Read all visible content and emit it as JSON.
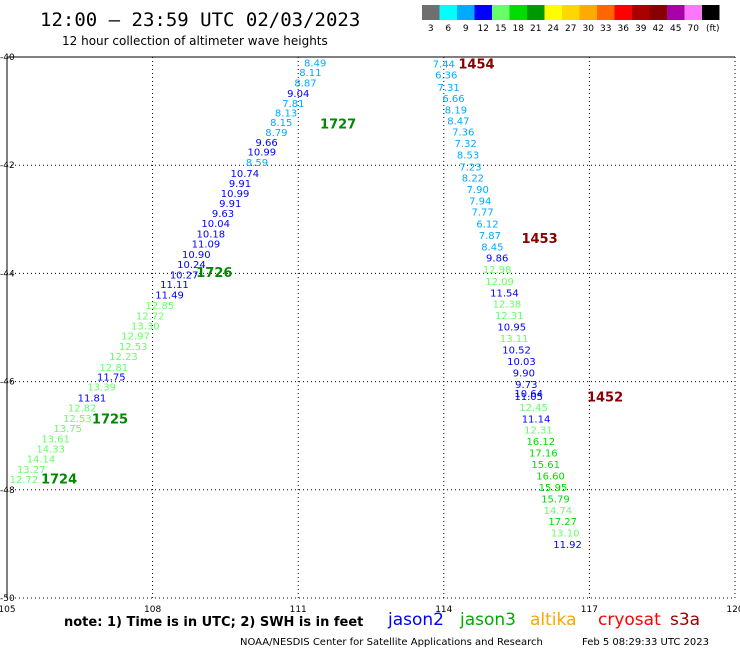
{
  "header": {
    "title": "12:00 – 23:59 UTC 02/03/2023",
    "subtitle": "12 hour collection of altimeter wave heights"
  },
  "color_scale": {
    "labels": [
      "3",
      "6",
      "9",
      "12",
      "15",
      "18",
      "21",
      "24",
      "27",
      "30",
      "33",
      "36",
      "39",
      "42",
      "45",
      "70",
      "(ft)"
    ],
    "colors": [
      "#6f6f6f",
      "#00ffff",
      "#00aaff",
      "#0000ff",
      "#66ff66",
      "#00dd00",
      "#009900",
      "#ffff00",
      "#ffd700",
      "#ffaa00",
      "#ff6600",
      "#ff0000",
      "#aa0000",
      "#880000",
      "#aa00aa",
      "#ff77ff",
      "#000000"
    ]
  },
  "note": "note:  1) Time is in UTC;  2) SWH is in feet",
  "missions": [
    {
      "label": "jason2",
      "color": "#0000ff"
    },
    {
      "label": "jason3",
      "color": "#00aa00"
    },
    {
      "label": "altika",
      "color": "#ffa500"
    },
    {
      "label": "cryosat",
      "color": "#ff0000"
    },
    {
      "label": "s3a",
      "color": "#990000"
    }
  ],
  "footer": {
    "credit": "NOAA/NESDIS Center for Satellite Applications and Research",
    "timestamp": "Feb  5 08:29:33 UTC 2023"
  },
  "chart_data": {
    "type": "scatter",
    "x_ticks": [
      "105",
      "108",
      "111",
      "114",
      "117",
      "120"
    ],
    "y_ticks": [
      "-40",
      "-42",
      "-44",
      "-46",
      "-48",
      "-50"
    ],
    "xlim": [
      105,
      120
    ],
    "ylim": [
      -50,
      -40
    ],
    "grid": true,
    "points": [
      {
        "x": 111.35,
        "y": -40.1,
        "label": "8.49",
        "color": "#00aaff"
      },
      {
        "x": 111.25,
        "y": -40.28,
        "label": "8.11",
        "color": "#00aaff"
      },
      {
        "x": 111.15,
        "y": -40.47,
        "label": "8.87",
        "color": "#00aaff"
      },
      {
        "x": 111.0,
        "y": -40.67,
        "label": "9.04",
        "color": "#0000ff"
      },
      {
        "x": 110.9,
        "y": -40.85,
        "label": "7.81",
        "color": "#00aaff"
      },
      {
        "x": 110.75,
        "y": -41.03,
        "label": "8.13",
        "color": "#00aaff"
      },
      {
        "x": 110.65,
        "y": -41.2,
        "label": "8.15",
        "color": "#00aaff"
      },
      {
        "x": 110.55,
        "y": -41.39,
        "label": "8.79",
        "color": "#00aaff"
      },
      {
        "x": 110.35,
        "y": -41.57,
        "label": "9.66",
        "color": "#0000ff"
      },
      {
        "x": 110.25,
        "y": -41.75,
        "label": "10.99",
        "color": "#0000ff"
      },
      {
        "x": 110.15,
        "y": -41.94,
        "label": "8.59",
        "color": "#00aaff"
      },
      {
        "x": 109.9,
        "y": -42.14,
        "label": "10.74",
        "color": "#0000ff"
      },
      {
        "x": 109.8,
        "y": -42.33,
        "label": "9.91",
        "color": "#0000ff"
      },
      {
        "x": 109.7,
        "y": -42.51,
        "label": "10.99",
        "color": "#0000ff"
      },
      {
        "x": 109.6,
        "y": -42.7,
        "label": "9.91",
        "color": "#0000ff"
      },
      {
        "x": 109.45,
        "y": -42.88,
        "label": "9.63",
        "color": "#0000ff"
      },
      {
        "x": 109.3,
        "y": -43.07,
        "label": "10.04",
        "color": "#0000ff"
      },
      {
        "x": 109.2,
        "y": -43.26,
        "label": "10.18",
        "color": "#0000ff"
      },
      {
        "x": 109.1,
        "y": -43.45,
        "label": "11.09",
        "color": "#0000ff"
      },
      {
        "x": 108.9,
        "y": -43.64,
        "label": "10.90",
        "color": "#0000ff"
      },
      {
        "x": 108.8,
        "y": -43.83,
        "label": "10.24",
        "color": "#0000ff"
      },
      {
        "x": 108.65,
        "y": -44.02,
        "label": "10.27",
        "color": "#0000ff"
      },
      {
        "x": 108.45,
        "y": -44.2,
        "label": "11.11",
        "color": "#0000ff"
      },
      {
        "x": 108.35,
        "y": -44.39,
        "label": "11.49",
        "color": "#0000ff"
      },
      {
        "x": 108.15,
        "y": -44.58,
        "label": "12.85",
        "color": "#66ff66"
      },
      {
        "x": 107.95,
        "y": -44.78,
        "label": "12.72",
        "color": "#66ff66"
      },
      {
        "x": 107.85,
        "y": -44.96,
        "label": "13.30",
        "color": "#66ff66"
      },
      {
        "x": 107.65,
        "y": -45.15,
        "label": "12.97",
        "color": "#66ff66"
      },
      {
        "x": 107.6,
        "y": -45.34,
        "label": "12.53",
        "color": "#66ff66"
      },
      {
        "x": 107.4,
        "y": -45.53,
        "label": "12.23",
        "color": "#66ff66"
      },
      {
        "x": 107.2,
        "y": -45.73,
        "label": "12.81",
        "color": "#66ff66"
      },
      {
        "x": 107.15,
        "y": -45.91,
        "label": "11.75",
        "color": "#0000ff"
      },
      {
        "x": 106.95,
        "y": -46.09,
        "label": "13.39",
        "color": "#66ff66"
      },
      {
        "x": 106.75,
        "y": -46.29,
        "label": "11.81",
        "color": "#0000ff"
      },
      {
        "x": 106.55,
        "y": -46.48,
        "label": "12.82",
        "color": "#66ff66"
      },
      {
        "x": 106.45,
        "y": -46.67,
        "label": "12.53",
        "color": "#66ff66"
      },
      {
        "x": 106.25,
        "y": -46.86,
        "label": "13.75",
        "color": "#66ff66"
      },
      {
        "x": 106.0,
        "y": -47.05,
        "label": "13.61",
        "color": "#66ff66"
      },
      {
        "x": 105.9,
        "y": -47.24,
        "label": "14.33",
        "color": "#66ff66"
      },
      {
        "x": 105.7,
        "y": -47.42,
        "label": "14.14",
        "color": "#66ff66"
      },
      {
        "x": 105.5,
        "y": -47.62,
        "label": "13.27",
        "color": "#66ff66"
      },
      {
        "x": 105.35,
        "y": -47.8,
        "label": "12.72",
        "color": "#66ff66"
      },
      {
        "x": 114.0,
        "y": -40.12,
        "label": "7.44",
        "color": "#00aaff"
      },
      {
        "x": 114.05,
        "y": -40.32,
        "label": "6.36",
        "color": "#00aaff"
      },
      {
        "x": 114.1,
        "y": -40.55,
        "label": "7.31",
        "color": "#00aaff"
      },
      {
        "x": 114.2,
        "y": -40.76,
        "label": "6.66",
        "color": "#00aaff"
      },
      {
        "x": 114.25,
        "y": -40.97,
        "label": "8.19",
        "color": "#00aaff"
      },
      {
        "x": 114.3,
        "y": -41.17,
        "label": "8.47",
        "color": "#00aaff"
      },
      {
        "x": 114.4,
        "y": -41.38,
        "label": "7.36",
        "color": "#00aaff"
      },
      {
        "x": 114.45,
        "y": -41.59,
        "label": "7.32",
        "color": "#00aaff"
      },
      {
        "x": 114.5,
        "y": -41.8,
        "label": "8.53",
        "color": "#00aaff"
      },
      {
        "x": 114.55,
        "y": -42.02,
        "label": "7.23",
        "color": "#00aaff"
      },
      {
        "x": 114.6,
        "y": -42.23,
        "label": "8.22",
        "color": "#00aaff"
      },
      {
        "x": 114.7,
        "y": -42.44,
        "label": "7.90",
        "color": "#00aaff"
      },
      {
        "x": 114.75,
        "y": -42.65,
        "label": "7.94",
        "color": "#00aaff"
      },
      {
        "x": 114.8,
        "y": -42.86,
        "label": "7.77",
        "color": "#00aaff"
      },
      {
        "x": 114.9,
        "y": -43.08,
        "label": "6.12",
        "color": "#00aaff"
      },
      {
        "x": 114.95,
        "y": -43.29,
        "label": "7.87",
        "color": "#00aaff"
      },
      {
        "x": 115.0,
        "y": -43.5,
        "label": "8.45",
        "color": "#00aaff"
      },
      {
        "x": 115.1,
        "y": -43.71,
        "label": "9.86",
        "color": "#0000ff"
      },
      {
        "x": 115.1,
        "y": -43.92,
        "label": "12.98",
        "color": "#66ff66"
      },
      {
        "x": 115.15,
        "y": -44.14,
        "label": "12.09",
        "color": "#66ff66"
      },
      {
        "x": 115.25,
        "y": -44.35,
        "label": "11.54",
        "color": "#0000ff"
      },
      {
        "x": 115.3,
        "y": -44.56,
        "label": "12.38",
        "color": "#66ff66"
      },
      {
        "x": 115.35,
        "y": -44.77,
        "label": "12.31",
        "color": "#66ff66"
      },
      {
        "x": 115.4,
        "y": -44.98,
        "label": "10.95",
        "color": "#0000ff"
      },
      {
        "x": 115.45,
        "y": -45.19,
        "label": "13.11",
        "color": "#66ff66"
      },
      {
        "x": 115.5,
        "y": -45.41,
        "label": "10.52",
        "color": "#0000ff"
      },
      {
        "x": 115.6,
        "y": -45.62,
        "label": "10.03",
        "color": "#0000ff"
      },
      {
        "x": 115.65,
        "y": -45.83,
        "label": "9.90",
        "color": "#0000ff"
      },
      {
        "x": 115.7,
        "y": -46.04,
        "label": "9.73",
        "color": "#0000ff"
      },
      {
        "x": 115.75,
        "y": -46.21,
        "label": "10.64",
        "color": "#0000ff"
      },
      {
        "x": 115.75,
        "y": -46.27,
        "label": "11.05",
        "color": "#0000ff"
      },
      {
        "x": 115.85,
        "y": -46.47,
        "label": "12.45",
        "color": "#66ff66"
      },
      {
        "x": 115.9,
        "y": -46.68,
        "label": "11.14",
        "color": "#0000ff"
      },
      {
        "x": 115.95,
        "y": -46.89,
        "label": "12.31",
        "color": "#66ff66"
      },
      {
        "x": 116.0,
        "y": -47.1,
        "label": "16.12",
        "color": "#00dd00"
      },
      {
        "x": 116.05,
        "y": -47.31,
        "label": "17.16",
        "color": "#00dd00"
      },
      {
        "x": 116.1,
        "y": -47.52,
        "label": "15.61",
        "color": "#00dd00"
      },
      {
        "x": 116.2,
        "y": -47.74,
        "label": "16.60",
        "color": "#00dd00"
      },
      {
        "x": 116.25,
        "y": -47.95,
        "label": "15.95",
        "color": "#00dd00"
      },
      {
        "x": 116.3,
        "y": -48.16,
        "label": "15.79",
        "color": "#00dd00"
      },
      {
        "x": 116.35,
        "y": -48.37,
        "label": "14.74",
        "color": "#66ff66"
      },
      {
        "x": 116.45,
        "y": -48.58,
        "label": "17.27",
        "color": "#00dd00"
      },
      {
        "x": 116.5,
        "y": -48.79,
        "label": "13.10",
        "color": "#66ff66"
      },
      {
        "x": 116.55,
        "y": -49.0,
        "label": "11.92",
        "color": "#0000ff"
      }
    ],
    "pass_labels": [
      {
        "x": 111.45,
        "y": -41.23,
        "label": "1727",
        "color": "#008800"
      },
      {
        "x": 108.9,
        "y": -43.97,
        "label": "1726",
        "color": "#008800"
      },
      {
        "x": 106.75,
        "y": -46.68,
        "label": "1725",
        "color": "#008800"
      },
      {
        "x": 105.7,
        "y": -47.79,
        "label": "1724",
        "color": "#008800"
      },
      {
        "x": 114.3,
        "y": -40.12,
        "label": "1454",
        "color": "#880000"
      },
      {
        "x": 115.6,
        "y": -43.35,
        "label": "1453",
        "color": "#880000"
      },
      {
        "x": 116.95,
        "y": -46.28,
        "label": "1452",
        "color": "#880000"
      }
    ]
  }
}
